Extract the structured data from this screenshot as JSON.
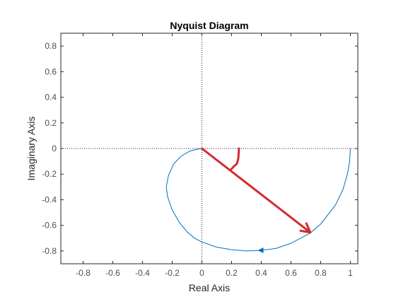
{
  "chart_data": {
    "type": "line",
    "title": "Nyquist Diagram",
    "xlabel": "Real Axis",
    "ylabel": "Imaginary Axis",
    "xlim": [
      -0.95,
      1.05
    ],
    "ylim": [
      -0.9,
      0.9
    ],
    "xticks": [
      "-0.8",
      "-0.6",
      "-0.4",
      "-0.2",
      "0",
      "0.2",
      "0.4",
      "0.6",
      "0.8",
      "1"
    ],
    "yticks": [
      "-0.8",
      "-0.6",
      "-0.4",
      "-0.2",
      "0",
      "0.2",
      "0.4",
      "0.6",
      "0.8"
    ],
    "grid": false,
    "colors": {
      "curve": "#0072BD",
      "overlay": "#D62830",
      "axes": "#262626",
      "zero_lines": "#262626"
    },
    "series": [
      {
        "x": [
          1.0,
          0.995,
          0.98,
          0.95,
          0.9,
          0.8,
          0.73,
          0.6,
          0.5,
          0.4,
          0.3,
          0.2,
          0.1,
          0.0,
          -0.05,
          -0.1,
          -0.15,
          -0.2,
          -0.23,
          -0.24,
          -0.225,
          -0.19,
          -0.14,
          -0.08,
          -0.03,
          0.0
        ],
        "y": [
          0.0,
          -0.1,
          -0.2,
          -0.32,
          -0.44,
          -0.59,
          -0.66,
          -0.74,
          -0.78,
          -0.795,
          -0.8,
          -0.79,
          -0.77,
          -0.73,
          -0.7,
          -0.65,
          -0.58,
          -0.48,
          -0.38,
          -0.3,
          -0.21,
          -0.12,
          -0.06,
          -0.02,
          -0.005,
          0.0
        ],
        "arrow": {
          "x": 0.4,
          "y": -0.795
        }
      }
    ],
    "overlay_lines": [
      {
        "x": [
          0.25,
          0.245,
          0.235,
          0.215,
          0.195
        ],
        "y": [
          0.0,
          -0.08,
          -0.12,
          -0.14,
          -0.165
        ]
      },
      {
        "x": [
          0.0,
          0.73
        ],
        "y": [
          0.0,
          -0.655
        ],
        "arrow_end": true
      }
    ]
  }
}
